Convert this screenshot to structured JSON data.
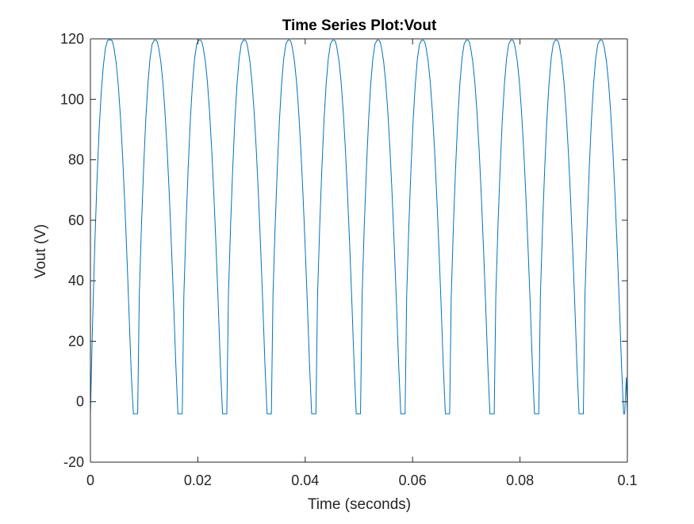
{
  "chart_data": {
    "type": "line",
    "title": "Time Series Plot:Vout",
    "xlabel": "Time (seconds)",
    "ylabel": "Vout (V)",
    "xlim": [
      0,
      0.1
    ],
    "ylim": [
      -20,
      120
    ],
    "xticks": [
      0,
      0.02,
      0.04,
      0.06,
      0.08,
      0.1
    ],
    "xtick_labels": [
      "0",
      "0.02",
      "0.04",
      "0.06",
      "0.08",
      "0.1"
    ],
    "yticks": [
      -20,
      0,
      20,
      40,
      60,
      80,
      100,
      120
    ],
    "ytick_labels": [
      "-20",
      "0",
      "20",
      "40",
      "60",
      "80",
      "100",
      "120"
    ],
    "grid": false,
    "line_color": "#0072BD",
    "series": [
      {
        "x": [
          0,
          0.0004,
          0.0008,
          0.0012,
          0.0016,
          0.002,
          0.0024,
          0.0028,
          0.0032,
          0.0036,
          0.004,
          0.0042,
          0.0044,
          0.0048,
          0.0052,
          0.0056,
          0.006,
          0.0064,
          0.0068,
          0.0072,
          0.0076,
          0.008,
          0.0082,
          0.0085,
          0.0088,
          0.0091,
          0.0095,
          0.0099,
          0.0103,
          0.0107,
          0.0111,
          0.0115,
          0.0119,
          0.0123,
          0.0125,
          0.0127,
          0.0131,
          0.0135,
          0.0139,
          0.0143,
          0.0147,
          0.0151,
          0.0155,
          0.0159,
          0.0163,
          0.0165,
          0.0168,
          0.0171,
          0.0174,
          0.0178,
          0.0182,
          0.0186,
          0.019,
          0.0194,
          0.0198,
          0.0202,
          0.0206,
          0.0208,
          0.021,
          0.0214,
          0.0218,
          0.0222,
          0.0226,
          0.023,
          0.0234,
          0.0238,
          0.0242,
          0.0246,
          0.0248,
          0.0251,
          0.0254,
          0.0257,
          0.0261,
          0.0265,
          0.0269,
          0.0273,
          0.0277,
          0.0281,
          0.0285,
          0.0289,
          0.0291,
          0.0293,
          0.0297,
          0.0301,
          0.0305,
          0.0309,
          0.0313,
          0.0317,
          0.0321,
          0.0325,
          0.0329,
          0.0331,
          0.0334,
          0.0337,
          0.034,
          0.0344,
          0.0348,
          0.0352,
          0.0356,
          0.036,
          0.0364,
          0.0368,
          0.0372,
          0.0374,
          0.0376,
          0.038,
          0.0384,
          0.0388,
          0.0392,
          0.0396,
          0.04,
          0.0404,
          0.0408,
          0.0412,
          0.0414,
          0.0417,
          0.042,
          0.0423,
          0.0427,
          0.0431,
          0.0435,
          0.0439,
          0.0443,
          0.0447,
          0.0451,
          0.0455,
          0.0457,
          0.0459,
          0.0463,
          0.0467,
          0.0471,
          0.0475,
          0.0479,
          0.0483,
          0.0487,
          0.0491,
          0.0495,
          0.0497,
          0.05,
          0.0503,
          0.0506,
          0.051,
          0.0514,
          0.0518,
          0.0522,
          0.0526,
          0.053,
          0.0534,
          0.0538,
          0.054,
          0.0542,
          0.0546,
          0.055,
          0.0554,
          0.0558,
          0.0562,
          0.0566,
          0.057,
          0.0574,
          0.0578,
          0.058,
          0.0583,
          0.0586,
          0.0589,
          0.0593,
          0.0597,
          0.0601,
          0.0605,
          0.0609,
          0.0613,
          0.0617,
          0.0621,
          0.0623,
          0.0625,
          0.0629,
          0.0633,
          0.0637,
          0.0641,
          0.0645,
          0.0649,
          0.0653,
          0.0657,
          0.0661,
          0.0663,
          0.0666,
          0.0669,
          0.0672,
          0.0676,
          0.068,
          0.0684,
          0.0688,
          0.0692,
          0.0696,
          0.07,
          0.0704,
          0.0706,
          0.0708,
          0.0712,
          0.0716,
          0.072,
          0.0724,
          0.0728,
          0.0732,
          0.0736,
          0.074,
          0.0744,
          0.0746,
          0.0749,
          0.0752,
          0.0755,
          0.0759,
          0.0763,
          0.0767,
          0.0771,
          0.0775,
          0.0779,
          0.0783,
          0.0787,
          0.0789,
          0.0791,
          0.0795,
          0.0799,
          0.0803,
          0.0807,
          0.0811,
          0.0815,
          0.0819,
          0.0823,
          0.0827,
          0.0829,
          0.0832,
          0.0835,
          0.0838,
          0.0842,
          0.0846,
          0.085,
          0.0854,
          0.0858,
          0.0862,
          0.0866,
          0.087,
          0.0872,
          0.0874,
          0.0878,
          0.0882,
          0.0886,
          0.089,
          0.0894,
          0.0898,
          0.0902,
          0.0906,
          0.091,
          0.0912,
          0.0915,
          0.0918,
          0.0921,
          0.0925,
          0.0929,
          0.0933,
          0.0937,
          0.0941,
          0.0945,
          0.0949,
          0.0953,
          0.0955,
          0.0957,
          0.0961,
          0.0965,
          0.0969,
          0.0973,
          0.0977,
          0.0981,
          0.0985,
          0.0989,
          0.0993,
          0.0995,
          0.0998,
          0.1
        ],
        "y": [
          -4,
          26,
          51,
          72,
          89,
          102,
          111,
          117,
          119.5,
          119.7,
          119.5,
          118.5,
          116.8,
          112,
          104.5,
          94,
          81,
          65.5,
          48,
          29,
          9.5,
          -4,
          -4,
          -4,
          -4,
          35,
          58,
          77,
          93,
          105,
          113.5,
          118.3,
          119.6,
          119.5,
          118.7,
          117.1,
          112.6,
          105.5,
          95.5,
          83,
          68,
          51,
          32.5,
          12.5,
          -4,
          -4,
          -4,
          -4,
          35,
          58,
          77,
          93,
          105,
          113.5,
          118.3,
          119.6,
          119.5,
          118.7,
          117.1,
          112.6,
          105.5,
          95.5,
          83,
          68,
          51,
          32.5,
          12.5,
          -4,
          -4,
          -4,
          -4,
          35,
          58,
          77,
          93,
          105,
          113.5,
          118.3,
          119.6,
          119.5,
          118.7,
          117.1,
          112.6,
          105.5,
          95.5,
          83,
          68,
          51,
          32.5,
          12.5,
          -4,
          -4,
          -4,
          -4,
          35,
          58,
          77,
          93,
          105,
          113.5,
          118.3,
          119.6,
          119.5,
          118.7,
          117.1,
          112.6,
          105.5,
          95.5,
          83,
          68,
          51,
          32.5,
          12.5,
          -4,
          -4,
          -4,
          -4,
          35,
          58,
          77,
          93,
          105,
          113.5,
          118.3,
          119.6,
          119.5,
          118.7,
          117.1,
          112.6,
          105.5,
          95.5,
          83,
          68,
          51,
          32.5,
          12.5,
          -4,
          -4,
          -4,
          -4,
          35,
          58,
          77,
          93,
          105,
          113.5,
          118.3,
          119.6,
          119.5,
          118.7,
          117.1,
          112.6,
          105.5,
          95.5,
          83,
          68,
          51,
          32.5,
          12.5,
          -4,
          -4,
          -4,
          -4,
          35,
          58,
          77,
          93,
          105,
          113.5,
          118.3,
          119.6,
          119.5,
          118.7,
          117.1,
          112.6,
          105.5,
          95.5,
          83,
          68,
          51,
          32.5,
          12.5,
          -4,
          -4,
          -4,
          -4,
          35,
          58,
          77,
          93,
          105,
          113.5,
          118.3,
          119.6,
          119.5,
          118.7,
          117.1,
          112.6,
          105.5,
          95.5,
          83,
          68,
          51,
          32.5,
          12.5,
          -4,
          -4,
          -4,
          -4,
          35,
          58,
          77,
          93,
          105,
          113.5,
          118.3,
          119.6,
          119.5,
          118.7,
          117.1,
          112.6,
          105.5,
          95.5,
          83,
          68,
          51,
          32.5,
          12.5,
          -4,
          -4,
          -4,
          -4,
          35,
          58,
          77,
          93,
          105,
          113.5,
          118.3,
          119.6,
          119.5,
          118.7,
          117.1,
          112.6,
          105.5,
          95.5,
          83,
          68,
          51,
          32.5,
          12.5,
          -4,
          -4,
          -4,
          -4,
          35,
          58,
          77,
          93,
          105,
          113.5,
          118.3,
          119.6,
          119.5,
          118.7,
          117.1,
          112.6,
          105.5,
          95.5,
          83,
          68,
          51,
          32.5,
          12.5,
          -4,
          -4,
          8,
          -4
        ]
      }
    ]
  }
}
